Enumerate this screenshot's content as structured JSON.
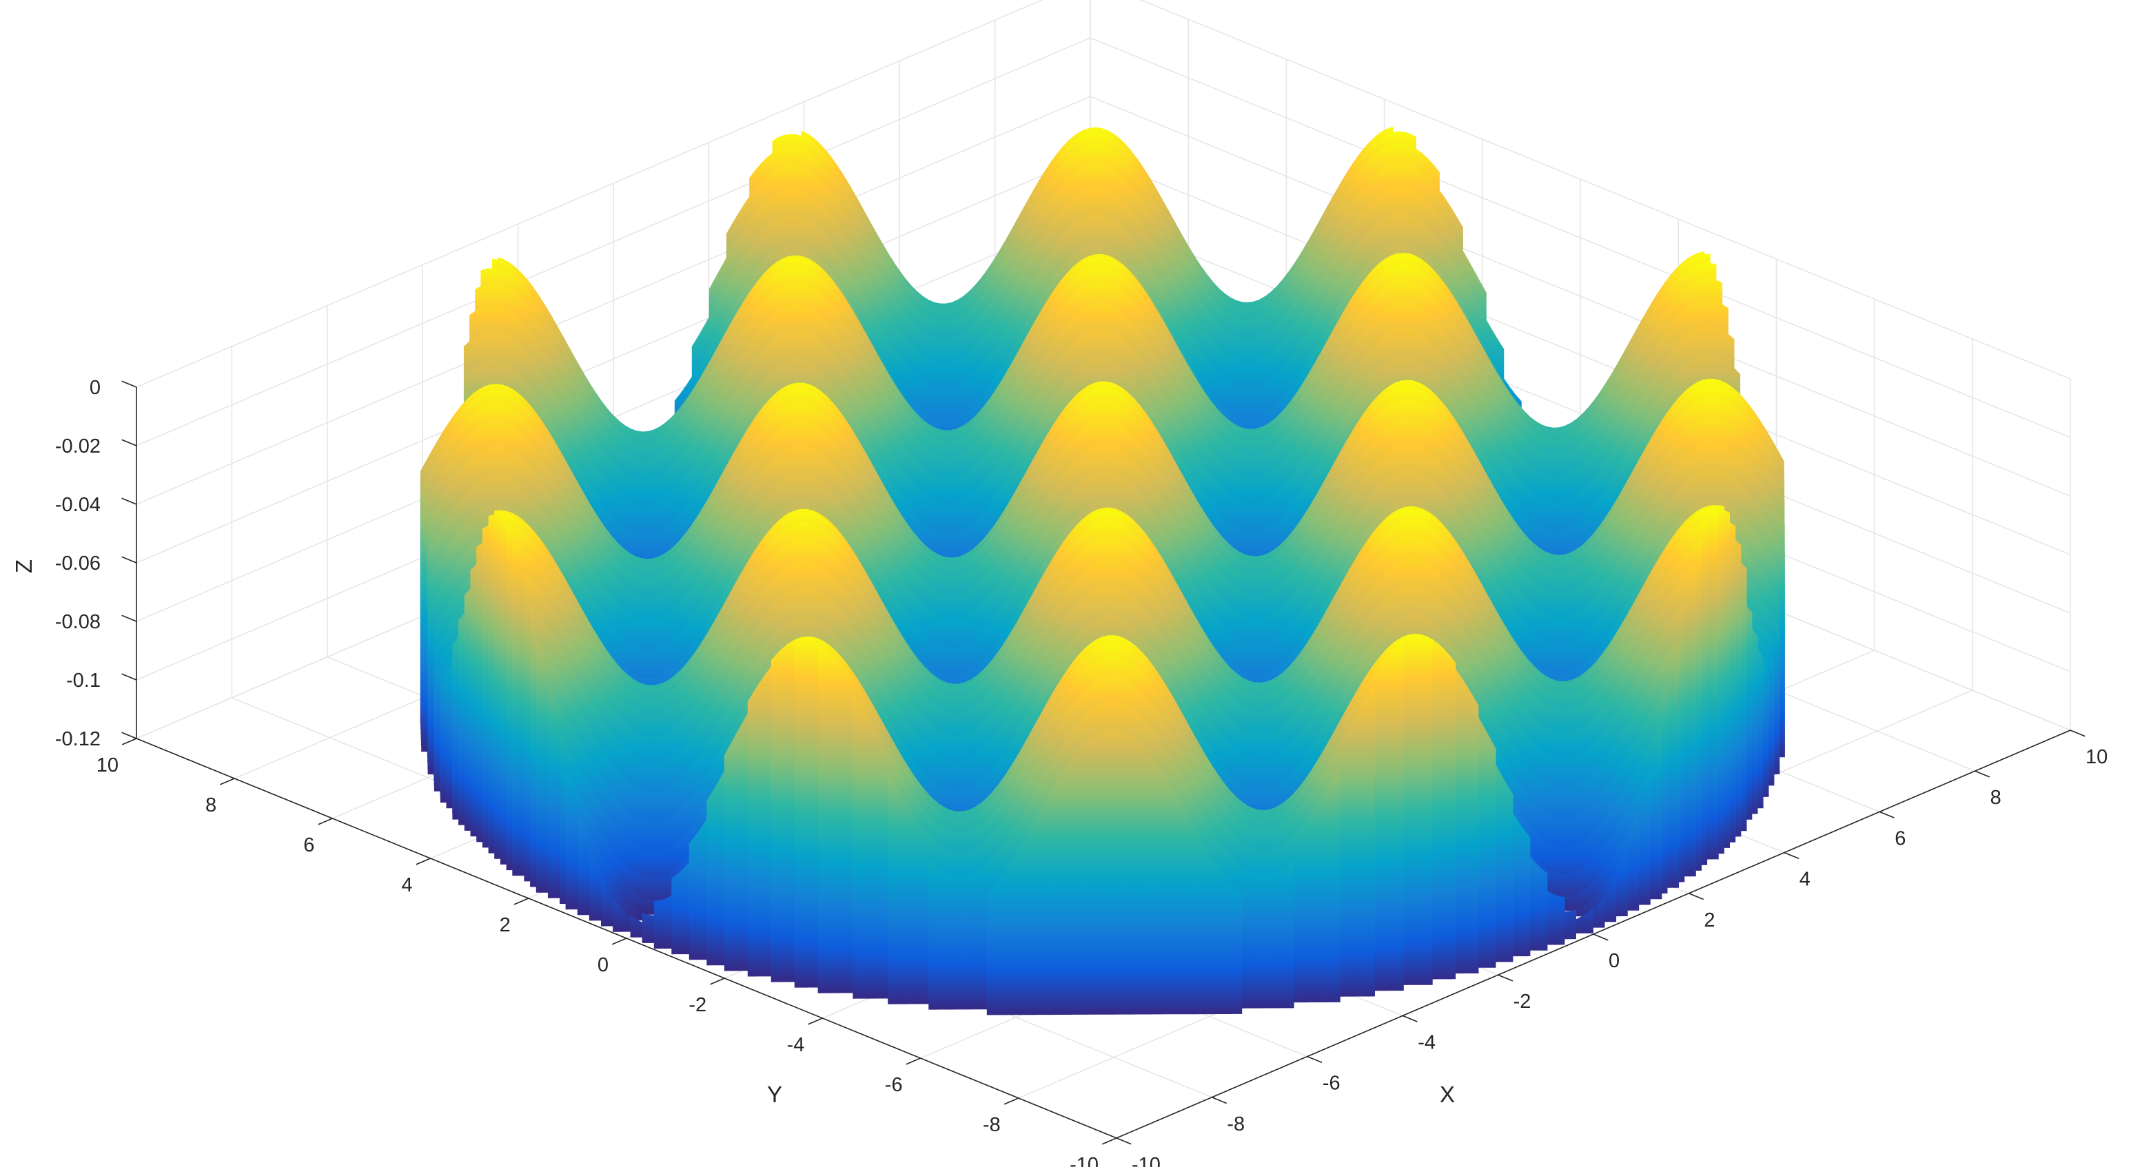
{
  "chart_data": {
    "type": "surface",
    "title": "",
    "xlabel": "X",
    "ylabel": "Y",
    "zlabel": "Z",
    "xlim": [
      -10,
      10
    ],
    "ylim": [
      -10,
      10
    ],
    "zlim": [
      -0.12,
      0
    ],
    "x_ticks": [
      "-10",
      "-8",
      "-6",
      "-4",
      "-2",
      "0",
      "2",
      "4",
      "6",
      "8",
      "10"
    ],
    "y_ticks": [
      "-10",
      "-8",
      "-6",
      "-4",
      "-2",
      "0",
      "2",
      "4",
      "6",
      "8",
      "10"
    ],
    "z_ticks": [
      "-0.12",
      "-0.1",
      "-0.08",
      "-0.06",
      "-0.04",
      "-0.02",
      "0"
    ],
    "surface": {
      "domain": "x^2 + y^2 <= 100",
      "function_form": "egg-crate: z ~ a*cos(x)*cos(y) + c",
      "peak_z": 0,
      "trough_z": -0.12,
      "peaks_xy": [
        [
          -6.28,
          -6.28
        ],
        [
          -6.28,
          0
        ],
        [
          -6.28,
          6.28
        ],
        [
          0,
          -6.28
        ],
        [
          0,
          0
        ],
        [
          0,
          6.28
        ],
        [
          6.28,
          -6.28
        ],
        [
          6.28,
          0
        ],
        [
          6.28,
          6.28
        ],
        [
          -3.14,
          -3.14
        ],
        [
          -3.14,
          3.14
        ],
        [
          3.14,
          -3.14
        ],
        [
          3.14,
          3.14
        ],
        [
          -3.14,
          -9.42
        ],
        [
          -3.14,
          9.42
        ],
        [
          3.14,
          -9.42
        ],
        [
          3.14,
          9.42
        ],
        [
          -9.42,
          -3.14
        ],
        [
          -9.42,
          3.14
        ],
        [
          9.42,
          -3.14
        ],
        [
          9.42,
          3.14
        ]
      ]
    },
    "grid": true,
    "colormap": "parula",
    "colormap_stops": [
      "#352a87",
      "#0f5cdd",
      "#1481d6",
      "#06a4ca",
      "#2eb7a4",
      "#87bf77",
      "#d1bb59",
      "#fec832",
      "#f9fb0e"
    ]
  }
}
